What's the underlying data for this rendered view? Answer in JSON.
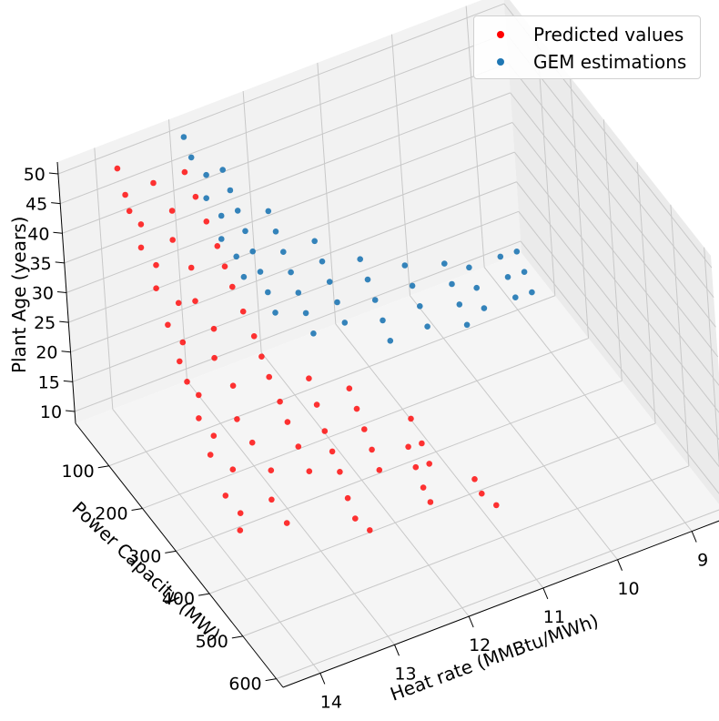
{
  "chart_data": {
    "type": "scatter",
    "projection": "3d",
    "xlabel": "Heat rate (MMBtu/MWh)",
    "ylabel": "Power Capacity (MW)",
    "zlabel": "Plant Age (years)",
    "x_ticks": [
      "9",
      "10",
      "11",
      "12",
      "13",
      "14"
    ],
    "y_ticks": [
      "100",
      "200",
      "300",
      "400",
      "500",
      "600"
    ],
    "z_ticks": [
      "10",
      "15",
      "20",
      "25",
      "30",
      "35",
      "40",
      "45",
      "50"
    ],
    "xlim": [
      8.5,
      14.5
    ],
    "ylim": [
      0,
      620
    ],
    "zlim": [
      8,
      52
    ],
    "grid": true,
    "legend_position": "top-right",
    "series": [
      {
        "name": "Predicted values",
        "color": "#ff0000",
        "points": [
          [
            13.8,
            20,
            49
          ],
          [
            13.8,
            40,
            46
          ],
          [
            13.8,
            50,
            44
          ],
          [
            13.7,
            60,
            42
          ],
          [
            13.8,
            80,
            40
          ],
          [
            13.7,
            100,
            38
          ],
          [
            13.8,
            120,
            36
          ],
          [
            13.6,
            140,
            34
          ],
          [
            13.8,
            150,
            32
          ],
          [
            13.7,
            170,
            30
          ],
          [
            13.8,
            180,
            28
          ],
          [
            13.8,
            200,
            26
          ],
          [
            13.7,
            210,
            24
          ],
          [
            13.8,
            230,
            22
          ],
          [
            13.7,
            250,
            20
          ],
          [
            13.8,
            260,
            18
          ],
          [
            13.6,
            280,
            16
          ],
          [
            13.8,
            300,
            14
          ],
          [
            13.7,
            320,
            12
          ],
          [
            13.8,
            340,
            11
          ],
          [
            13.5,
            60,
            48
          ],
          [
            13.4,
            90,
            45
          ],
          [
            13.5,
            110,
            42
          ],
          [
            13.4,
            140,
            39
          ],
          [
            13.5,
            170,
            36
          ],
          [
            13.4,
            200,
            33
          ],
          [
            13.5,
            220,
            30
          ],
          [
            13.4,
            250,
            27
          ],
          [
            13.5,
            280,
            24
          ],
          [
            13.4,
            300,
            21
          ],
          [
            13.3,
            330,
            18
          ],
          [
            13.4,
            350,
            15
          ],
          [
            13.3,
            370,
            12
          ],
          [
            13.0,
            40,
            46
          ],
          [
            13.0,
            70,
            44
          ],
          [
            13.0,
            100,
            42
          ],
          [
            13.0,
            130,
            40
          ],
          [
            13.0,
            150,
            38
          ],
          [
            13.0,
            170,
            36
          ],
          [
            13.0,
            200,
            34
          ],
          [
            13.0,
            230,
            32
          ],
          [
            13.0,
            250,
            30
          ],
          [
            13.0,
            270,
            28
          ],
          [
            13.0,
            300,
            26
          ],
          [
            13.0,
            320,
            24
          ],
          [
            13.0,
            350,
            22
          ],
          [
            13.0,
            380,
            20
          ],
          [
            12.6,
            300,
            28
          ],
          [
            12.6,
            320,
            25
          ],
          [
            12.6,
            340,
            22
          ],
          [
            12.6,
            360,
            20
          ],
          [
            12.6,
            380,
            18
          ],
          [
            12.6,
            400,
            15
          ],
          [
            12.6,
            420,
            13
          ],
          [
            12.5,
            440,
            12
          ],
          [
            12.0,
            280,
            22
          ],
          [
            12.0,
            300,
            20
          ],
          [
            12.0,
            320,
            18
          ],
          [
            12.0,
            340,
            16
          ],
          [
            12.0,
            360,
            14
          ],
          [
            11.6,
            360,
            16
          ],
          [
            11.6,
            380,
            14
          ],
          [
            11.6,
            400,
            12
          ],
          [
            11.6,
            420,
            11
          ],
          [
            11.3,
            300,
            15
          ],
          [
            11.3,
            330,
            13
          ],
          [
            11.3,
            350,
            11
          ],
          [
            11.0,
            420,
            12
          ],
          [
            11.0,
            440,
            11
          ],
          [
            10.9,
            460,
            10
          ]
        ]
      },
      {
        "name": "GEM estimations",
        "color": "#1f77b4",
        "points": [
          [
            12.9,
            20,
            50
          ],
          [
            12.9,
            40,
            48
          ],
          [
            12.8,
            60,
            46
          ],
          [
            12.9,
            80,
            44
          ],
          [
            12.8,
            100,
            42
          ],
          [
            12.9,
            120,
            40
          ],
          [
            12.8,
            140,
            38
          ],
          [
            12.8,
            160,
            36
          ],
          [
            12.5,
            40,
            44
          ],
          [
            12.5,
            60,
            42
          ],
          [
            12.5,
            80,
            40
          ],
          [
            12.5,
            100,
            38
          ],
          [
            12.5,
            120,
            36
          ],
          [
            12.5,
            140,
            34
          ],
          [
            12.5,
            160,
            32
          ],
          [
            12.5,
            180,
            30
          ],
          [
            12.1,
            80,
            38
          ],
          [
            12.1,
            100,
            36
          ],
          [
            12.1,
            120,
            34
          ],
          [
            12.1,
            140,
            32
          ],
          [
            12.1,
            160,
            30
          ],
          [
            12.1,
            180,
            28
          ],
          [
            12.1,
            200,
            26
          ],
          [
            11.6,
            100,
            32
          ],
          [
            11.6,
            120,
            30
          ],
          [
            11.6,
            140,
            28
          ],
          [
            11.6,
            160,
            26
          ],
          [
            11.6,
            180,
            24
          ],
          [
            11.1,
            120,
            28
          ],
          [
            11.1,
            140,
            26
          ],
          [
            11.1,
            160,
            24
          ],
          [
            11.1,
            180,
            22
          ],
          [
            11.1,
            200,
            20
          ],
          [
            10.6,
            140,
            26
          ],
          [
            10.6,
            160,
            24
          ],
          [
            10.6,
            180,
            22
          ],
          [
            10.6,
            200,
            20
          ],
          [
            10.0,
            120,
            22
          ],
          [
            10.0,
            140,
            20
          ],
          [
            10.0,
            160,
            18
          ],
          [
            10.0,
            180,
            16
          ],
          [
            9.6,
            100,
            18
          ],
          [
            9.6,
            120,
            16
          ],
          [
            9.6,
            140,
            14
          ],
          [
            9.1,
            80,
            16
          ],
          [
            9.1,
            100,
            14
          ],
          [
            9.1,
            120,
            12
          ],
          [
            8.8,
            60,
            14
          ],
          [
            8.8,
            80,
            12
          ],
          [
            8.8,
            100,
            10
          ]
        ]
      }
    ]
  }
}
